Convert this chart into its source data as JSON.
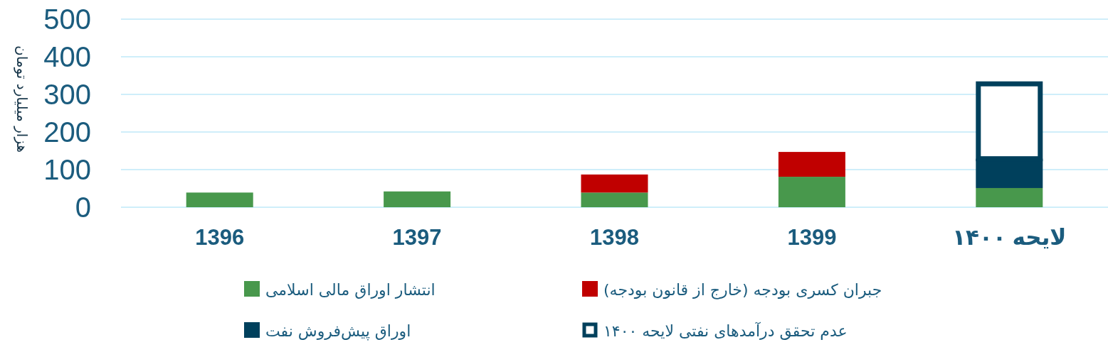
{
  "chart_data": {
    "type": "bar",
    "stacked": true,
    "ylabel": "هزار میلیارد تومان",
    "categories": [
      "1396",
      "1397",
      "1398",
      "1399",
      "لایحه ۱۴۰۰"
    ],
    "ylim": [
      0,
      500
    ],
    "yticks": [
      0,
      100,
      200,
      300,
      400,
      500
    ],
    "grid": "y",
    "legend": "bottom",
    "series": [
      {
        "name": "انتشار اوراق مالی اسلامی",
        "color": "#48984c",
        "values": [
          39,
          42,
          39,
          81,
          51
        ]
      },
      {
        "name": "جبران کسری بودجه (خارج از قانون بودجه)",
        "color": "#c00000",
        "values": [
          null,
          null,
          48,
          66,
          null
        ]
      },
      {
        "name": "اوراق پیش‌فروش نفت",
        "color": "#00405c",
        "values": [
          null,
          null,
          null,
          null,
          78
        ]
      },
      {
        "name": "عدم تحقق درآمدهای نفتی لایحه ۱۴۰۰",
        "color": "#00405c",
        "line_style": "solid",
        "values": [
          null,
          null,
          null,
          null,
          199
        ]
      }
    ]
  }
}
